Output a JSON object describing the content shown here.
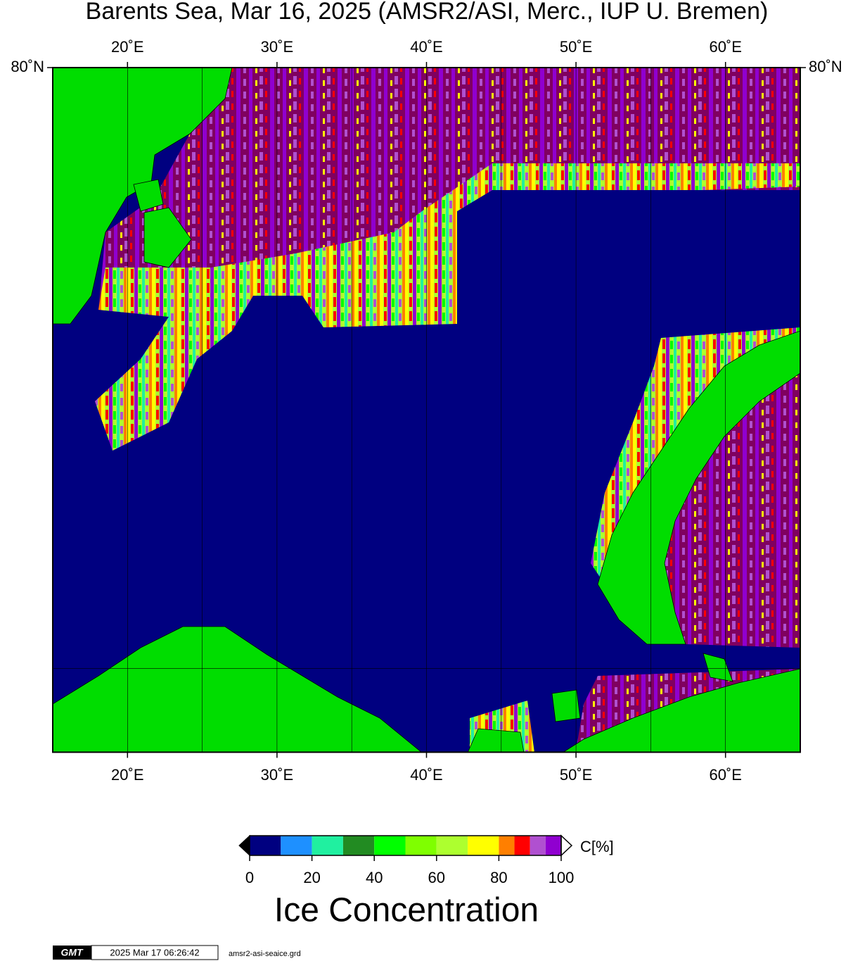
{
  "title": "Barents Sea, Mar 16, 2025 (AMSR2/ASI, Merc., IUP U. Bremen)",
  "map": {
    "lonlim": [
      15,
      65
    ],
    "latlim": [
      68,
      80
    ],
    "lonticks": [
      {
        "value": 20,
        "label": "20˚E"
      },
      {
        "value": 30,
        "label": "30˚E"
      },
      {
        "value": 40,
        "label": "40˚E"
      },
      {
        "value": 50,
        "label": "50˚E"
      },
      {
        "value": 60,
        "label": "60˚E"
      }
    ],
    "latticks": [
      {
        "value": 80,
        "label": "80˚N"
      }
    ],
    "lon_grid": [
      20,
      25,
      30,
      35,
      40,
      45,
      50,
      55,
      60
    ],
    "lat_grid": [
      70
    ]
  },
  "colorbar": {
    "bounds": [
      0,
      10,
      20,
      30,
      40,
      50,
      60,
      70,
      80,
      85,
      90,
      95,
      100
    ],
    "colors": [
      "#000080",
      "#1e90ff",
      "#20f0a0",
      "#228b22",
      "#00ff00",
      "#7fff00",
      "#adff2f",
      "#ffff00",
      "#ff7f00",
      "#ff0000",
      "#b050d0",
      "#9000d0"
    ],
    "ticks": [
      0,
      20,
      40,
      60,
      80,
      100
    ],
    "unit": "C[%]",
    "label": "Ice Concentration"
  },
  "footer": {
    "logo": "GMT",
    "timestamp": "2025 Mar 17 06:26:42",
    "file": "amsr2-asi-seaice.grd"
  }
}
